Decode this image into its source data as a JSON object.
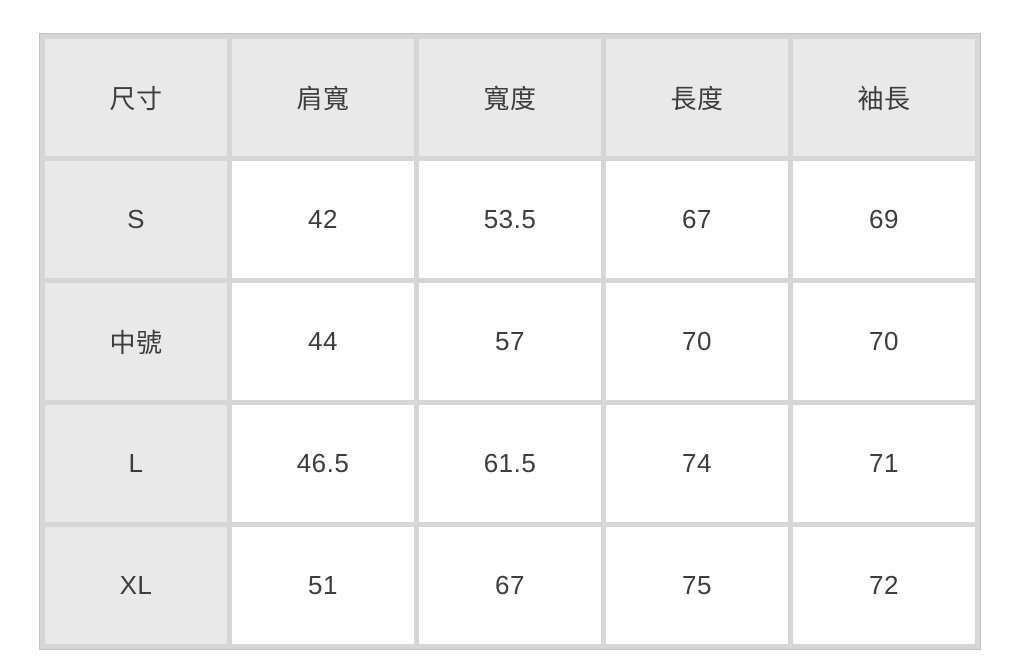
{
  "chart_data": {
    "type": "table",
    "columns": [
      "尺寸",
      "肩寬",
      "寬度",
      "長度",
      "袖長"
    ],
    "rows": [
      {
        "size": "S",
        "values": [
          "42",
          "53.5",
          "67",
          "69"
        ]
      },
      {
        "size": "中號",
        "values": [
          "44",
          "57",
          "70",
          "70"
        ]
      },
      {
        "size": "L",
        "values": [
          "46.5",
          "61.5",
          "74",
          "71"
        ]
      },
      {
        "size": "XL",
        "values": [
          "51",
          "67",
          "75",
          "72"
        ]
      }
    ]
  },
  "colors": {
    "header_bg": "#e9e9e9",
    "cell_bg": "#ffffff",
    "grid_border": "#d6d6d6",
    "outer_border": "#c3c3c3",
    "text": "#3d3d3d",
    "page_bg": "#ffffff"
  }
}
